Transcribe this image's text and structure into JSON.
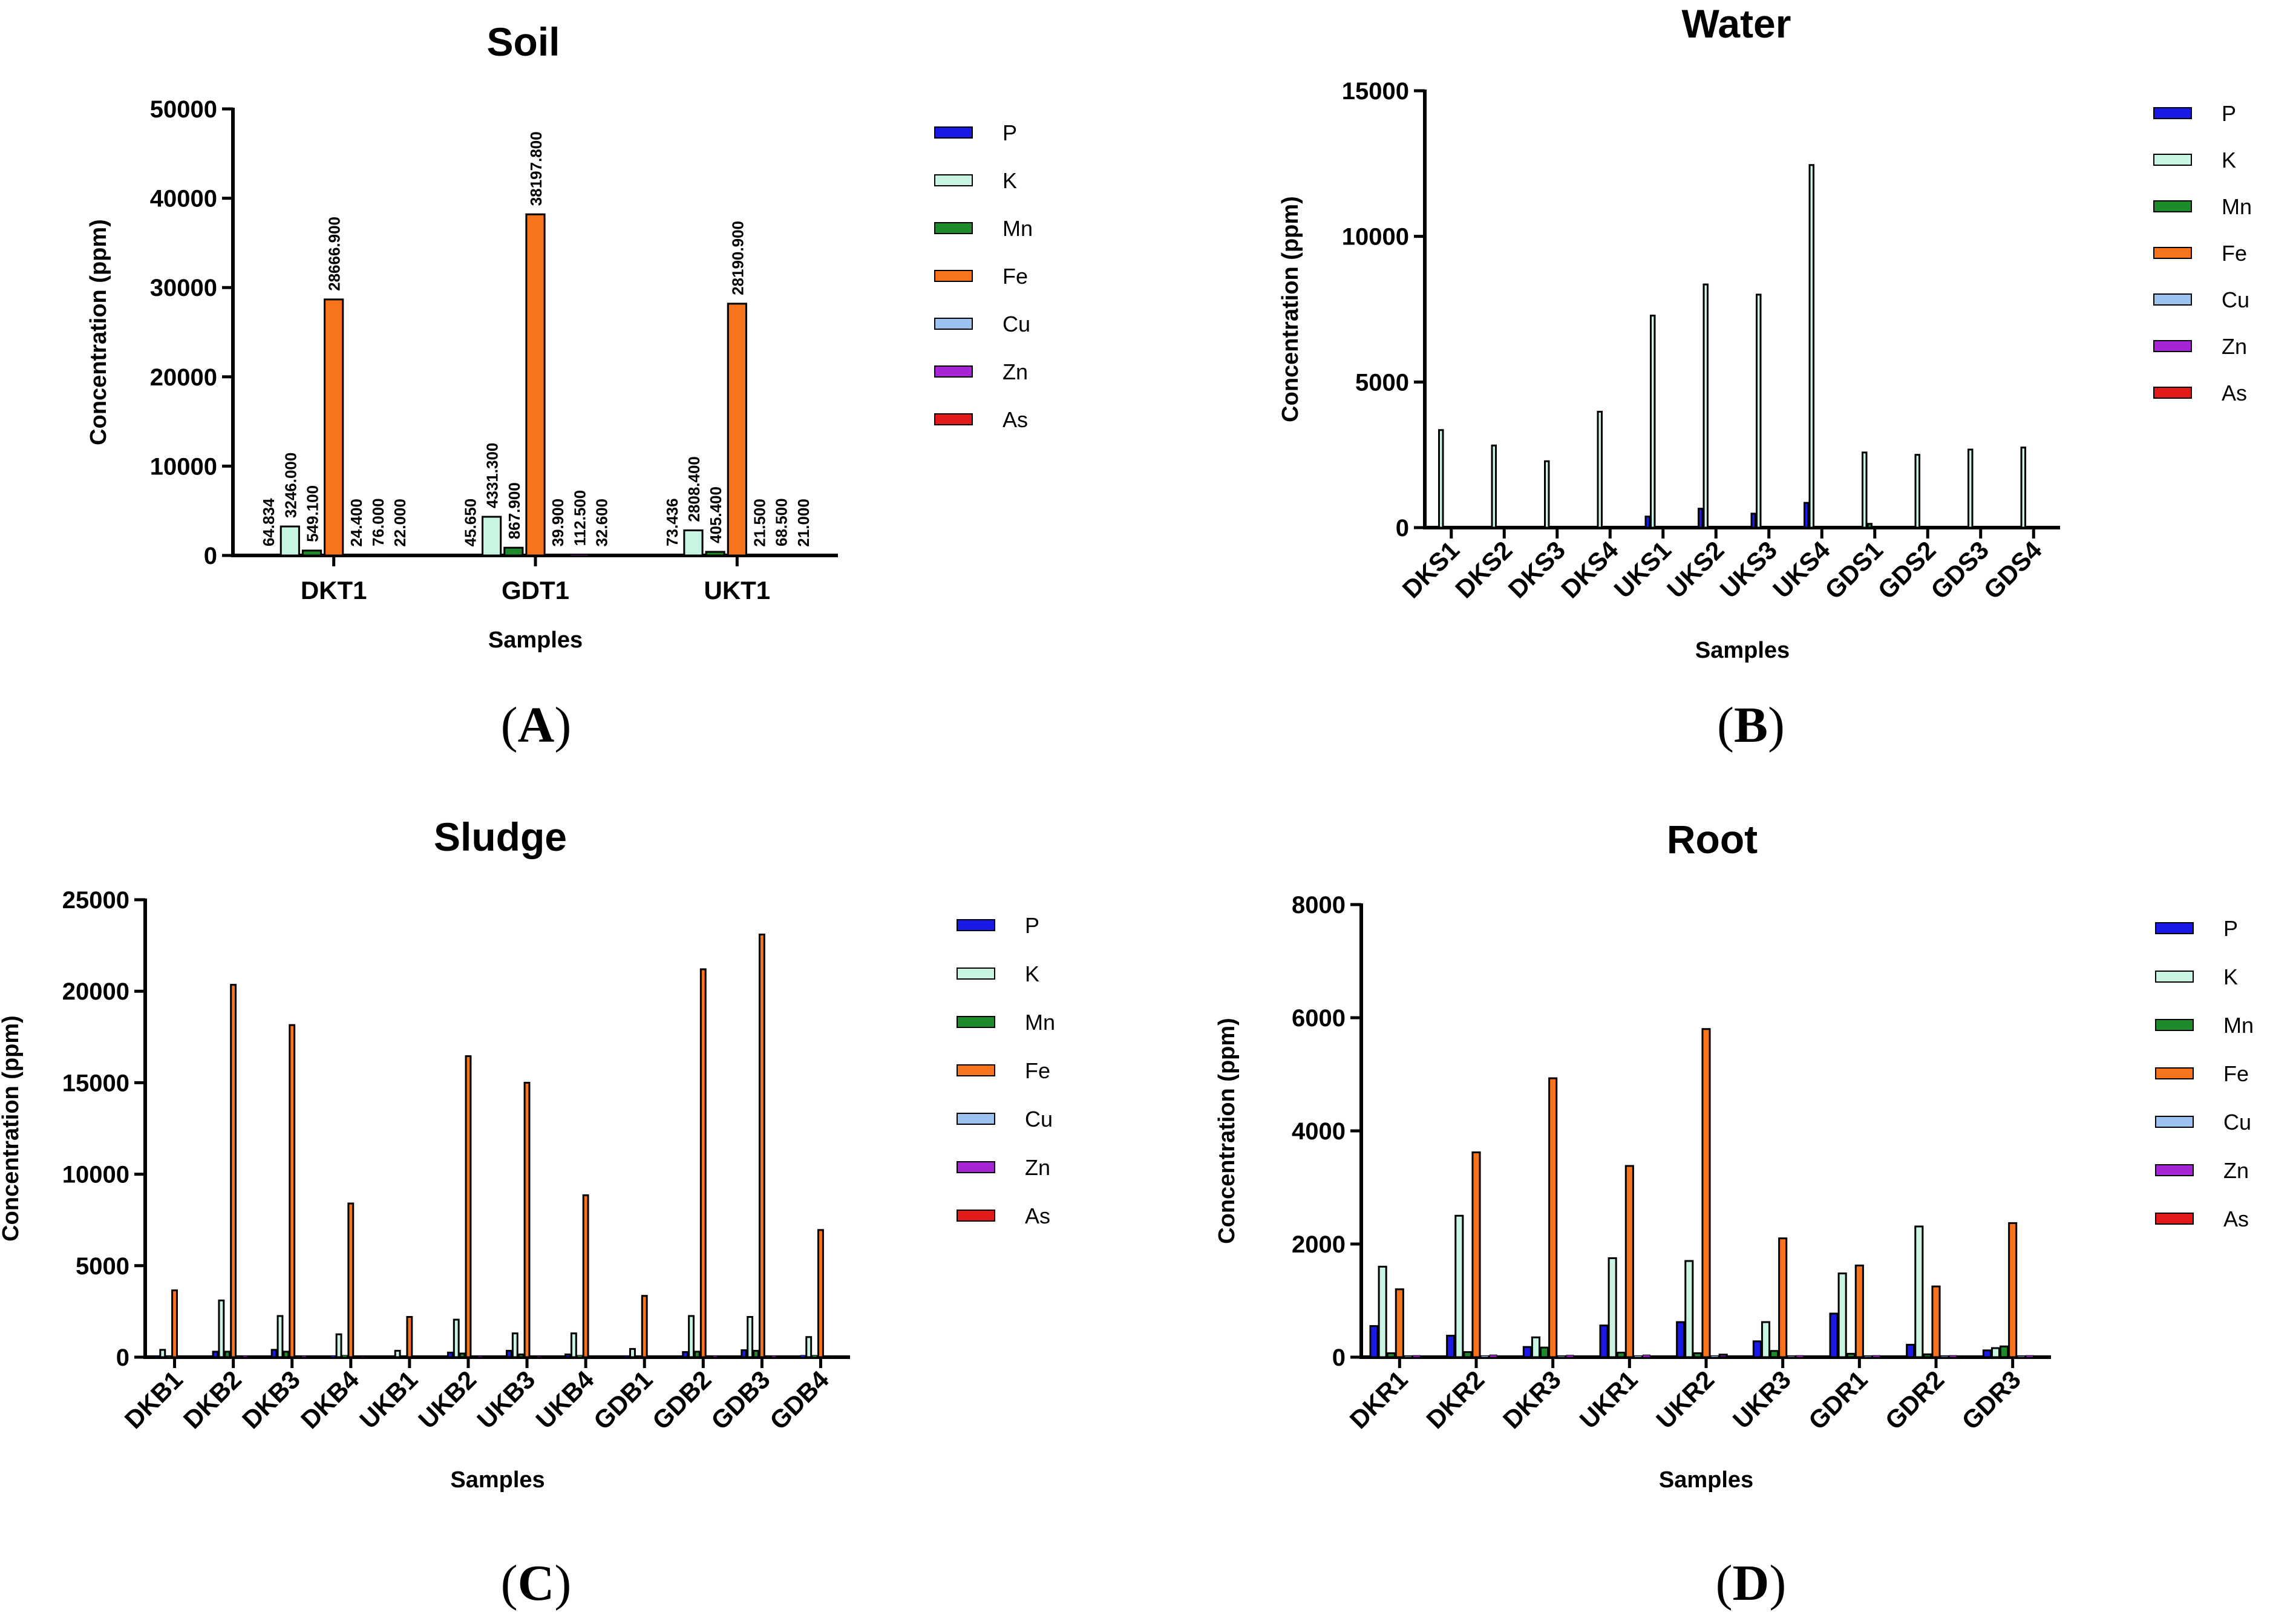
{
  "colors": {
    "P": "#1a1ae6",
    "K": "#c8f5e1",
    "Mn": "#1f8a2c",
    "Fe": "#f7731c",
    "Cu": "#9cc3f0",
    "Zn": "#a524d4",
    "As": "#e21a1a"
  },
  "chart_data": [
    {
      "panel": "A",
      "type": "bar",
      "title": "Soil",
      "xlabel": "Samples",
      "ylabel": "Concentration (ppm)",
      "ylim": [
        0,
        50000
      ],
      "yticks": [
        "0",
        "10000",
        "20000",
        "30000",
        "40000",
        "50000"
      ],
      "legend_position": "right",
      "categories": [
        "DKT1",
        "GDT1",
        "UKT1"
      ],
      "series": [
        {
          "name": "P",
          "values": [
            64.834,
            45.65,
            73.436
          ]
        },
        {
          "name": "K",
          "values": [
            3246.0,
            4331.3,
            2808.4
          ]
        },
        {
          "name": "Mn",
          "values": [
            549.1,
            867.9,
            405.4
          ]
        },
        {
          "name": "Fe",
          "values": [
            28666.9,
            38197.8,
            28190.9
          ]
        },
        {
          "name": "Cu",
          "values": [
            24.4,
            39.9,
            21.5
          ]
        },
        {
          "name": "Zn",
          "values": [
            76.0,
            112.5,
            68.5
          ]
        },
        {
          "name": "As",
          "values": [
            22.0,
            32.6,
            21.0
          ]
        }
      ],
      "data_labels": [
        [
          "64.834",
          "3246.000",
          "549.100",
          "28666.900",
          "24.400",
          "76.000",
          "22.000"
        ],
        [
          "45.650",
          "4331.300",
          "867.900",
          "38197.800",
          "39.900",
          "112.500",
          "32.600"
        ],
        [
          "73.436",
          "2808.400",
          "405.400",
          "28190.900",
          "21.500",
          "68.500",
          "21.000"
        ]
      ]
    },
    {
      "panel": "B",
      "type": "bar",
      "title": "Water",
      "xlabel": "Samples",
      "ylabel": "Concentration (ppm)",
      "ylim": [
        0,
        15000
      ],
      "yticks": [
        "0",
        "5000",
        "10000",
        "15000"
      ],
      "legend_position": "right",
      "categories": [
        "DKS1",
        "DKS2",
        "DKS3",
        "DKS4",
        "UKS1",
        "UKS2",
        "UKS3",
        "UKS4",
        "GDS1",
        "GDS2",
        "GDS3",
        "GDS4"
      ],
      "series": [
        {
          "name": "P",
          "values": [
            15,
            10,
            10,
            15,
            380,
            650,
            480,
            850,
            20,
            15,
            15,
            15
          ]
        },
        {
          "name": "K",
          "values": [
            3350,
            2820,
            2280,
            3980,
            7280,
            8350,
            8000,
            12450,
            2580,
            2500,
            2680,
            2750
          ]
        },
        {
          "name": "Mn",
          "values": [
            5,
            5,
            5,
            5,
            10,
            10,
            10,
            15,
            130,
            5,
            5,
            5
          ]
        },
        {
          "name": "Fe",
          "values": [
            5,
            5,
            5,
            5,
            10,
            10,
            10,
            10,
            5,
            5,
            5,
            5
          ]
        },
        {
          "name": "Cu",
          "values": [
            2,
            2,
            2,
            2,
            2,
            2,
            2,
            2,
            2,
            2,
            2,
            2
          ]
        },
        {
          "name": "Zn",
          "values": [
            2,
            2,
            2,
            2,
            2,
            2,
            2,
            2,
            2,
            2,
            2,
            2
          ]
        },
        {
          "name": "As",
          "values": [
            2,
            2,
            2,
            2,
            2,
            2,
            2,
            2,
            2,
            2,
            2,
            2
          ]
        }
      ]
    },
    {
      "panel": "C",
      "type": "bar",
      "title": "Sludge",
      "xlabel": "Samples",
      "ylabel": "Concentration (ppm)",
      "ylim": [
        0,
        25000
      ],
      "yticks": [
        "0",
        "5000",
        "10000",
        "15000",
        "20000",
        "25000"
      ],
      "legend_position": "right",
      "categories": [
        "DKB1",
        "DKB2",
        "DKB3",
        "DKB4",
        "UKB1",
        "UKB2",
        "UKB3",
        "UKB4",
        "GDB1",
        "GDB2",
        "GDB3",
        "GDB4"
      ],
      "series": [
        {
          "name": "P",
          "values": [
            50,
            300,
            400,
            80,
            30,
            250,
            350,
            150,
            60,
            280,
            380,
            100
          ]
        },
        {
          "name": "K",
          "values": [
            400,
            3100,
            2250,
            1250,
            350,
            2050,
            1300,
            1300,
            450,
            2250,
            2200,
            1100
          ]
        },
        {
          "name": "Mn",
          "values": [
            50,
            300,
            300,
            100,
            40,
            200,
            150,
            100,
            40,
            300,
            350,
            100
          ]
        },
        {
          "name": "Fe",
          "values": [
            3650,
            20350,
            18150,
            8400,
            2200,
            16450,
            15000,
            8850,
            3350,
            21200,
            23100,
            6950
          ]
        },
        {
          "name": "Cu",
          "values": [
            20,
            40,
            40,
            25,
            15,
            35,
            30,
            25,
            20,
            40,
            40,
            25
          ]
        },
        {
          "name": "Zn",
          "values": [
            30,
            70,
            70,
            45,
            25,
            60,
            55,
            40,
            30,
            70,
            70,
            40
          ]
        },
        {
          "name": "As",
          "values": [
            15,
            30,
            30,
            20,
            10,
            25,
            25,
            20,
            15,
            30,
            30,
            20
          ]
        }
      ]
    },
    {
      "panel": "D",
      "type": "bar",
      "title": "Root",
      "xlabel": "Samples",
      "ylabel": "Concentration (ppm)",
      "ylim": [
        0,
        8000
      ],
      "yticks": [
        "0",
        "2000",
        "4000",
        "6000",
        "8000"
      ],
      "legend_position": "right",
      "categories": [
        "DKR1",
        "DKR2",
        "DKR3",
        "UKR1",
        "UKR2",
        "UKR3",
        "GDR1",
        "GDR2",
        "GDR3"
      ],
      "series": [
        {
          "name": "P",
          "values": [
            550,
            380,
            180,
            560,
            620,
            280,
            770,
            220,
            120
          ]
        },
        {
          "name": "K",
          "values": [
            1600,
            2500,
            350,
            1750,
            1700,
            620,
            1480,
            2310,
            160
          ]
        },
        {
          "name": "Mn",
          "values": [
            70,
            90,
            170,
            80,
            70,
            110,
            60,
            50,
            190
          ]
        },
        {
          "name": "Fe",
          "values": [
            1200,
            3620,
            4930,
            3380,
            5800,
            2100,
            1620,
            1250,
            2370
          ]
        },
        {
          "name": "Cu",
          "values": [
            20,
            25,
            20,
            25,
            25,
            20,
            20,
            20,
            20
          ]
        },
        {
          "name": "Zn",
          "values": [
            30,
            40,
            35,
            40,
            45,
            30,
            30,
            30,
            30
          ]
        },
        {
          "name": "As",
          "values": [
            10,
            10,
            10,
            10,
            10,
            10,
            10,
            10,
            10
          ]
        }
      ]
    }
  ],
  "panel_labels": {
    "A": {
      "open": "(",
      "letter": "A",
      "close": ")"
    },
    "B": {
      "open": "(",
      "letter": "B",
      "close": ")"
    },
    "C": {
      "open": "(",
      "letter": "C",
      "close": ")"
    },
    "D": {
      "open": "(",
      "letter": "D",
      "close": ")"
    }
  }
}
